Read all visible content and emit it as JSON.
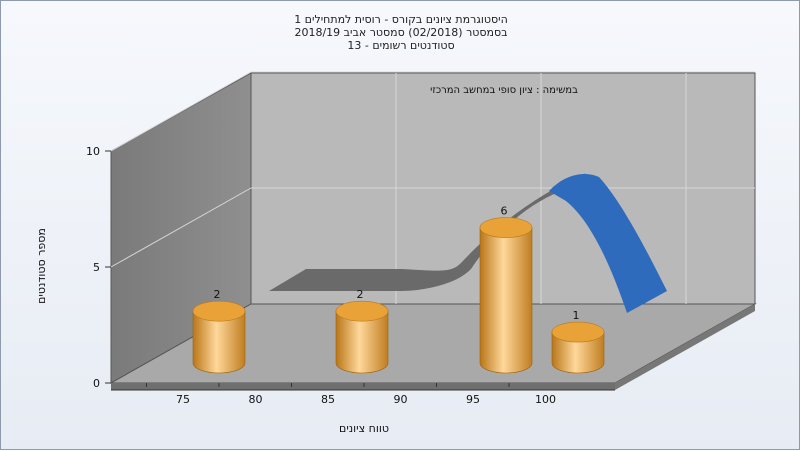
{
  "titles": [
    "היסטוגרמת ציונים בקורס - רוסית למתחילים 1",
    "בסמסטר  (02/2018)  סמסטר אביב 2018/19",
    "סטודנטים רשומים - 13"
  ],
  "subtitle": "במשימה : ציון סופי במחשב המרכזי",
  "colors": {
    "bar": "#e8a83a",
    "curve_front": "#2f6bbd",
    "curve_back": "#6a6a6a",
    "back_wall": "#b9b9b9",
    "side_wall": "#838383",
    "floor": "#a9a9a9"
  },
  "chart_data": {
    "type": "bar",
    "xlabel": "טווח ציונים",
    "ylabel": "מספר סטודנטים",
    "x_ticks": [
      "75",
      "80",
      "85",
      "90",
      "95",
      "100"
    ],
    "y_ticks": [
      "0",
      "5",
      "10"
    ],
    "ylim": [
      0,
      10
    ],
    "bars": [
      {
        "range": "70-75",
        "value": 2,
        "label": "2"
      },
      {
        "range": "80-85",
        "value": 2,
        "label": "2"
      },
      {
        "range": "90-95",
        "value": 6,
        "label": "6"
      },
      {
        "range": "95-100",
        "value": 1,
        "label": "1"
      }
    ],
    "grid": true,
    "3d": true
  }
}
